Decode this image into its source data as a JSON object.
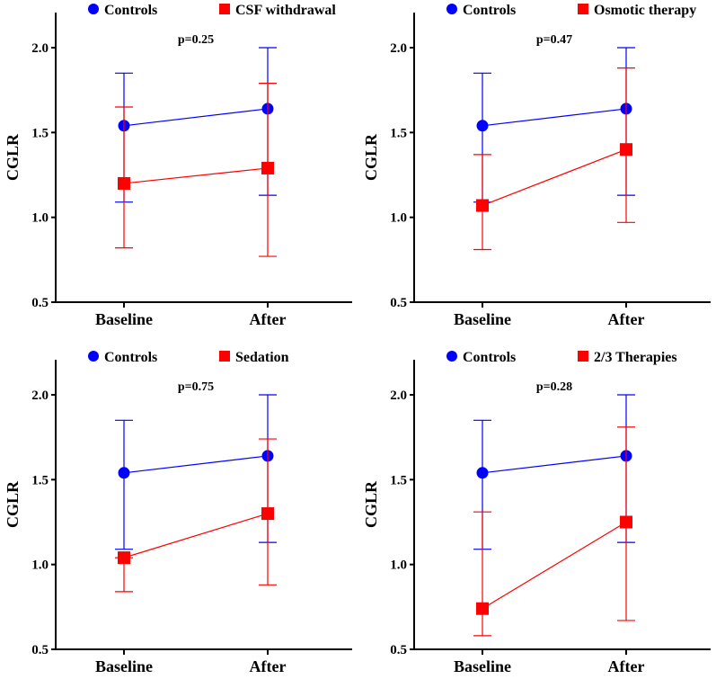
{
  "chart_data": [
    {
      "type": "line",
      "title": "p=0.25",
      "ylabel": "CGLR",
      "xlabel": "",
      "categories": [
        "Baseline",
        "After"
      ],
      "ylim": [
        0.5,
        2.2
      ],
      "yticks": [
        "0.5",
        "1.0",
        "1.5",
        "2.0"
      ],
      "legend_position": "top",
      "series": [
        {
          "name": "Controls",
          "color": "#0000ff",
          "marker": "circle",
          "values": [
            1.54,
            1.64
          ],
          "err_low": [
            1.09,
            1.13
          ],
          "err_high": [
            1.85,
            2.0
          ]
        },
        {
          "name": "CSF withdrawal",
          "color": "#ff0000",
          "marker": "square",
          "values": [
            1.2,
            1.29
          ],
          "err_low": [
            0.82,
            0.77
          ],
          "err_high": [
            1.65,
            1.79
          ]
        }
      ]
    },
    {
      "type": "line",
      "title": "p=0.47",
      "ylabel": "CGLR",
      "xlabel": "",
      "categories": [
        "Baseline",
        "After"
      ],
      "ylim": [
        0.5,
        2.2
      ],
      "yticks": [
        "0.5",
        "1.0",
        "1.5",
        "2.0"
      ],
      "legend_position": "top",
      "series": [
        {
          "name": "Controls",
          "color": "#0000ff",
          "marker": "circle",
          "values": [
            1.54,
            1.64
          ],
          "err_low": [
            1.09,
            1.13
          ],
          "err_high": [
            1.85,
            2.0
          ]
        },
        {
          "name": "Osmotic therapy",
          "color": "#ff0000",
          "marker": "square",
          "values": [
            1.07,
            1.4
          ],
          "err_low": [
            0.81,
            0.97
          ],
          "err_high": [
            1.37,
            1.88
          ]
        }
      ]
    },
    {
      "type": "line",
      "title": "p=0.75",
      "ylabel": "CGLR",
      "xlabel": "",
      "categories": [
        "Baseline",
        "After"
      ],
      "ylim": [
        0.5,
        2.2
      ],
      "yticks": [
        "0.5",
        "1.0",
        "1.5",
        "2.0"
      ],
      "legend_position": "top",
      "series": [
        {
          "name": "Controls",
          "color": "#0000ff",
          "marker": "circle",
          "values": [
            1.54,
            1.64
          ],
          "err_low": [
            1.09,
            1.13
          ],
          "err_high": [
            1.85,
            2.0
          ]
        },
        {
          "name": "Sedation",
          "color": "#ff0000",
          "marker": "square",
          "values": [
            1.04,
            1.3
          ],
          "err_low": [
            0.84,
            0.88
          ],
          "err_high": [
            1.04,
            1.74
          ]
        }
      ]
    },
    {
      "type": "line",
      "title": "p=0.28",
      "ylabel": "CGLR",
      "xlabel": "",
      "categories": [
        "Baseline",
        "After"
      ],
      "ylim": [
        0.5,
        2.2
      ],
      "yticks": [
        "0.5",
        "1.0",
        "1.5",
        "2.0"
      ],
      "legend_position": "top",
      "series": [
        {
          "name": "Controls",
          "color": "#0000ff",
          "marker": "circle",
          "values": [
            1.54,
            1.64
          ],
          "err_low": [
            1.09,
            1.13
          ],
          "err_high": [
            1.85,
            2.0
          ]
        },
        {
          "name": "2/3 Therapies",
          "color": "#ff0000",
          "marker": "square",
          "values": [
            0.74,
            1.25
          ],
          "err_low": [
            0.58,
            0.67
          ],
          "err_high": [
            1.31,
            1.81
          ]
        }
      ]
    }
  ]
}
